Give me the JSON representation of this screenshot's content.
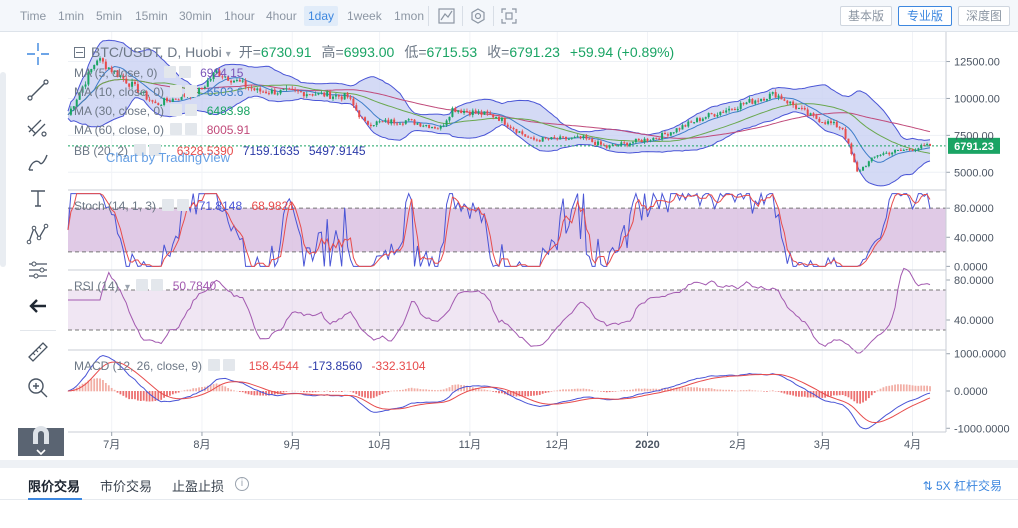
{
  "toolbar": {
    "timeframes": [
      {
        "label": "Time",
        "active": false
      },
      {
        "label": "1min",
        "active": false
      },
      {
        "label": "5min",
        "active": false
      },
      {
        "label": "15min",
        "active": false
      },
      {
        "label": "30min",
        "active": false
      },
      {
        "label": "1hour",
        "active": false
      },
      {
        "label": "4hour",
        "active": false
      },
      {
        "label": "1day",
        "active": true
      },
      {
        "label": "1week",
        "active": false
      },
      {
        "label": "1mon",
        "active": false
      }
    ],
    "modes": [
      {
        "label": "基本版",
        "active": false
      },
      {
        "label": "专业版",
        "active": true
      },
      {
        "label": "深度图",
        "active": false
      }
    ]
  },
  "header": {
    "symbol": "BTC/USDT, D, Huobi",
    "open_label": "开=",
    "open": "6730.91",
    "high_label": "高=",
    "high": "6993.00",
    "low_label": "低=",
    "low": "6715.53",
    "close_label": "收=",
    "close": "6791.23",
    "change": "+59.94 (+0.89%)"
  },
  "indicators": {
    "ma5": {
      "label": "MA (5, close, 0)",
      "value": "6924.15"
    },
    "ma10": {
      "label": "MA (10, close, 0)",
      "value": "6503.6"
    },
    "ma30": {
      "label": "MA (30, close, 0)",
      "value": "6483.98"
    },
    "ma60": {
      "label": "MA (60, close, 0)",
      "value": "8005.91"
    },
    "bb": {
      "label": "BB (20, 2)",
      "v1": "6328.5390",
      "v2": "7159.1635",
      "v3": "5497.9145"
    },
    "stoch": {
      "label": "Stoch (14, 1, 3)",
      "v1": "71.8148",
      "v2": "68.9821"
    },
    "rsi": {
      "label": "RSI (14)",
      "v1": "50.7840"
    },
    "macd": {
      "label": "MACD (12, 26, close, 9)",
      "v1": "158.4544",
      "v2": "-173.8560",
      "v3": "-332.3104"
    }
  },
  "watermark": "Chart by TradingView",
  "last_price_tag": "6791.23",
  "colors": {
    "up": "#1aa464",
    "down": "#e74c4c",
    "bb_fill": "#c5cdf2",
    "bb_line": "#4a55d6",
    "osc_fill": "#d5b8de",
    "osc_line_blue": "#4a55d6",
    "osc_line_red": "#e74c4c",
    "rsi_line": "#a35ab0",
    "accent": "#3d87df"
  },
  "bottom_tabs": {
    "tabs": [
      {
        "label": "限价交易",
        "active": true
      },
      {
        "label": "市价交易",
        "active": false
      },
      {
        "label": "止盈止损",
        "active": false
      }
    ],
    "leverage_label": "5X 杠杆交易"
  },
  "chart_data": [
    {
      "type": "candlestick",
      "title": "BTC/USDT, D, Huobi",
      "x_ticks": [
        "7月",
        "8月",
        "9月",
        "10月",
        "11月",
        "12月",
        "2020",
        "2月",
        "3月",
        "4月"
      ],
      "y_ticks": [
        "12500.00",
        "10000.00",
        "7500.00",
        "5000.00"
      ],
      "ylim": [
        3800,
        14500
      ],
      "grid": true,
      "anchors": [
        {
          "x": "2019-06-16",
          "y": 8900
        },
        {
          "x": "2019-06-26",
          "y": 12700
        },
        {
          "x": "2019-07-06",
          "y": 11200
        },
        {
          "x": "2019-07-16",
          "y": 9600
        },
        {
          "x": "2019-07-31",
          "y": 10500
        },
        {
          "x": "2019-08-06",
          "y": 11800
        },
        {
          "x": "2019-08-20",
          "y": 10500
        },
        {
          "x": "2019-09-05",
          "y": 10400
        },
        {
          "x": "2019-09-20",
          "y": 10100
        },
        {
          "x": "2019-09-26",
          "y": 8300
        },
        {
          "x": "2019-10-10",
          "y": 8500
        },
        {
          "x": "2019-10-22",
          "y": 8000
        },
        {
          "x": "2019-10-26",
          "y": 9300
        },
        {
          "x": "2019-11-10",
          "y": 8800
        },
        {
          "x": "2019-11-22",
          "y": 7200
        },
        {
          "x": "2019-12-10",
          "y": 7300
        },
        {
          "x": "2019-12-18",
          "y": 6700
        },
        {
          "x": "2020-01-05",
          "y": 7400
        },
        {
          "x": "2020-01-20",
          "y": 8700
        },
        {
          "x": "2020-02-10",
          "y": 10100
        },
        {
          "x": "2020-02-14",
          "y": 10300
        },
        {
          "x": "2020-02-26",
          "y": 8800
        },
        {
          "x": "2020-03-08",
          "y": 8000
        },
        {
          "x": "2020-03-13",
          "y": 5000
        },
        {
          "x": "2020-03-20",
          "y": 6200
        },
        {
          "x": "2020-04-07",
          "y": 6800
        }
      ],
      "last_price": 6791.23
    },
    {
      "type": "line",
      "title": "Stoch (14, 1, 3)",
      "y_ticks": [
        "80.0000",
        "40.0000",
        "0.0000"
      ],
      "ylim": [
        -5,
        105
      ],
      "band": [
        20,
        80
      ],
      "series": [
        {
          "name": "71.8148"
        },
        {
          "name": "68.9821"
        }
      ]
    },
    {
      "type": "line",
      "title": "RSI (14)",
      "y_ticks": [
        "80.0000",
        "40.0000"
      ],
      "ylim": [
        10,
        90
      ],
      "band": [
        30,
        70
      ],
      "series": [
        {
          "name": "50.7840"
        }
      ]
    },
    {
      "type": "line",
      "title": "MACD (12, 26, close, 9)",
      "y_ticks": [
        "1000.0000",
        "0.0000",
        "-1000.0000"
      ],
      "ylim": [
        -1100,
        1100
      ],
      "series": [
        {
          "name": "158.4544"
        },
        {
          "name": "-173.8560"
        },
        {
          "name": "-332.3104"
        }
      ]
    }
  ]
}
